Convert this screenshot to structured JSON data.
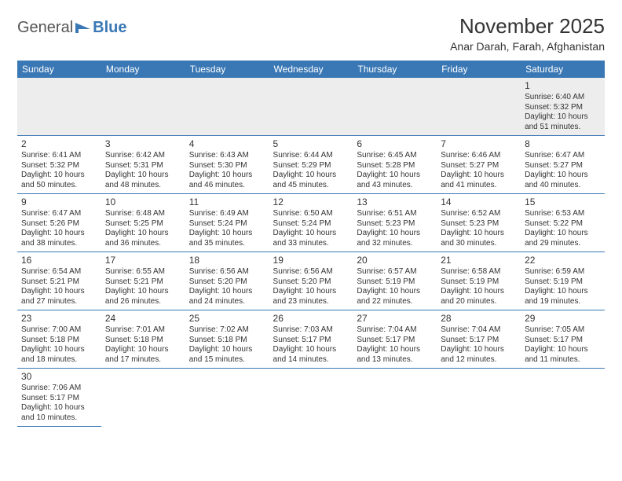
{
  "brand": {
    "part1": "General",
    "part2": "Blue"
  },
  "title": "November 2025",
  "location": "Anar Darah, Farah, Afghanistan",
  "colors": {
    "header_bg": "#3a78b5",
    "header_text": "#ffffff",
    "border": "#3a78b5",
    "empty_bg": "#ededed",
    "text": "#333333"
  },
  "day_headers": [
    "Sunday",
    "Monday",
    "Tuesday",
    "Wednesday",
    "Thursday",
    "Friday",
    "Saturday"
  ],
  "weeks": [
    [
      null,
      null,
      null,
      null,
      null,
      null,
      {
        "n": "1",
        "sunrise": "6:40 AM",
        "sunset": "5:32 PM",
        "dl1": "Daylight: 10 hours",
        "dl2": "and 51 minutes."
      }
    ],
    [
      {
        "n": "2",
        "sunrise": "6:41 AM",
        "sunset": "5:32 PM",
        "dl1": "Daylight: 10 hours",
        "dl2": "and 50 minutes."
      },
      {
        "n": "3",
        "sunrise": "6:42 AM",
        "sunset": "5:31 PM",
        "dl1": "Daylight: 10 hours",
        "dl2": "and 48 minutes."
      },
      {
        "n": "4",
        "sunrise": "6:43 AM",
        "sunset": "5:30 PM",
        "dl1": "Daylight: 10 hours",
        "dl2": "and 46 minutes."
      },
      {
        "n": "5",
        "sunrise": "6:44 AM",
        "sunset": "5:29 PM",
        "dl1": "Daylight: 10 hours",
        "dl2": "and 45 minutes."
      },
      {
        "n": "6",
        "sunrise": "6:45 AM",
        "sunset": "5:28 PM",
        "dl1": "Daylight: 10 hours",
        "dl2": "and 43 minutes."
      },
      {
        "n": "7",
        "sunrise": "6:46 AM",
        "sunset": "5:27 PM",
        "dl1": "Daylight: 10 hours",
        "dl2": "and 41 minutes."
      },
      {
        "n": "8",
        "sunrise": "6:47 AM",
        "sunset": "5:27 PM",
        "dl1": "Daylight: 10 hours",
        "dl2": "and 40 minutes."
      }
    ],
    [
      {
        "n": "9",
        "sunrise": "6:47 AM",
        "sunset": "5:26 PM",
        "dl1": "Daylight: 10 hours",
        "dl2": "and 38 minutes."
      },
      {
        "n": "10",
        "sunrise": "6:48 AM",
        "sunset": "5:25 PM",
        "dl1": "Daylight: 10 hours",
        "dl2": "and 36 minutes."
      },
      {
        "n": "11",
        "sunrise": "6:49 AM",
        "sunset": "5:24 PM",
        "dl1": "Daylight: 10 hours",
        "dl2": "and 35 minutes."
      },
      {
        "n": "12",
        "sunrise": "6:50 AM",
        "sunset": "5:24 PM",
        "dl1": "Daylight: 10 hours",
        "dl2": "and 33 minutes."
      },
      {
        "n": "13",
        "sunrise": "6:51 AM",
        "sunset": "5:23 PM",
        "dl1": "Daylight: 10 hours",
        "dl2": "and 32 minutes."
      },
      {
        "n": "14",
        "sunrise": "6:52 AM",
        "sunset": "5:23 PM",
        "dl1": "Daylight: 10 hours",
        "dl2": "and 30 minutes."
      },
      {
        "n": "15",
        "sunrise": "6:53 AM",
        "sunset": "5:22 PM",
        "dl1": "Daylight: 10 hours",
        "dl2": "and 29 minutes."
      }
    ],
    [
      {
        "n": "16",
        "sunrise": "6:54 AM",
        "sunset": "5:21 PM",
        "dl1": "Daylight: 10 hours",
        "dl2": "and 27 minutes."
      },
      {
        "n": "17",
        "sunrise": "6:55 AM",
        "sunset": "5:21 PM",
        "dl1": "Daylight: 10 hours",
        "dl2": "and 26 minutes."
      },
      {
        "n": "18",
        "sunrise": "6:56 AM",
        "sunset": "5:20 PM",
        "dl1": "Daylight: 10 hours",
        "dl2": "and 24 minutes."
      },
      {
        "n": "19",
        "sunrise": "6:56 AM",
        "sunset": "5:20 PM",
        "dl1": "Daylight: 10 hours",
        "dl2": "and 23 minutes."
      },
      {
        "n": "20",
        "sunrise": "6:57 AM",
        "sunset": "5:19 PM",
        "dl1": "Daylight: 10 hours",
        "dl2": "and 22 minutes."
      },
      {
        "n": "21",
        "sunrise": "6:58 AM",
        "sunset": "5:19 PM",
        "dl1": "Daylight: 10 hours",
        "dl2": "and 20 minutes."
      },
      {
        "n": "22",
        "sunrise": "6:59 AM",
        "sunset": "5:19 PM",
        "dl1": "Daylight: 10 hours",
        "dl2": "and 19 minutes."
      }
    ],
    [
      {
        "n": "23",
        "sunrise": "7:00 AM",
        "sunset": "5:18 PM",
        "dl1": "Daylight: 10 hours",
        "dl2": "and 18 minutes."
      },
      {
        "n": "24",
        "sunrise": "7:01 AM",
        "sunset": "5:18 PM",
        "dl1": "Daylight: 10 hours",
        "dl2": "and 17 minutes."
      },
      {
        "n": "25",
        "sunrise": "7:02 AM",
        "sunset": "5:18 PM",
        "dl1": "Daylight: 10 hours",
        "dl2": "and 15 minutes."
      },
      {
        "n": "26",
        "sunrise": "7:03 AM",
        "sunset": "5:17 PM",
        "dl1": "Daylight: 10 hours",
        "dl2": "and 14 minutes."
      },
      {
        "n": "27",
        "sunrise": "7:04 AM",
        "sunset": "5:17 PM",
        "dl1": "Daylight: 10 hours",
        "dl2": "and 13 minutes."
      },
      {
        "n": "28",
        "sunrise": "7:04 AM",
        "sunset": "5:17 PM",
        "dl1": "Daylight: 10 hours",
        "dl2": "and 12 minutes."
      },
      {
        "n": "29",
        "sunrise": "7:05 AM",
        "sunset": "5:17 PM",
        "dl1": "Daylight: 10 hours",
        "dl2": "and 11 minutes."
      }
    ],
    [
      {
        "n": "30",
        "sunrise": "7:06 AM",
        "sunset": "5:17 PM",
        "dl1": "Daylight: 10 hours",
        "dl2": "and 10 minutes."
      },
      null,
      null,
      null,
      null,
      null,
      null
    ]
  ],
  "labels": {
    "sunrise_prefix": "Sunrise: ",
    "sunset_prefix": "Sunset: "
  }
}
